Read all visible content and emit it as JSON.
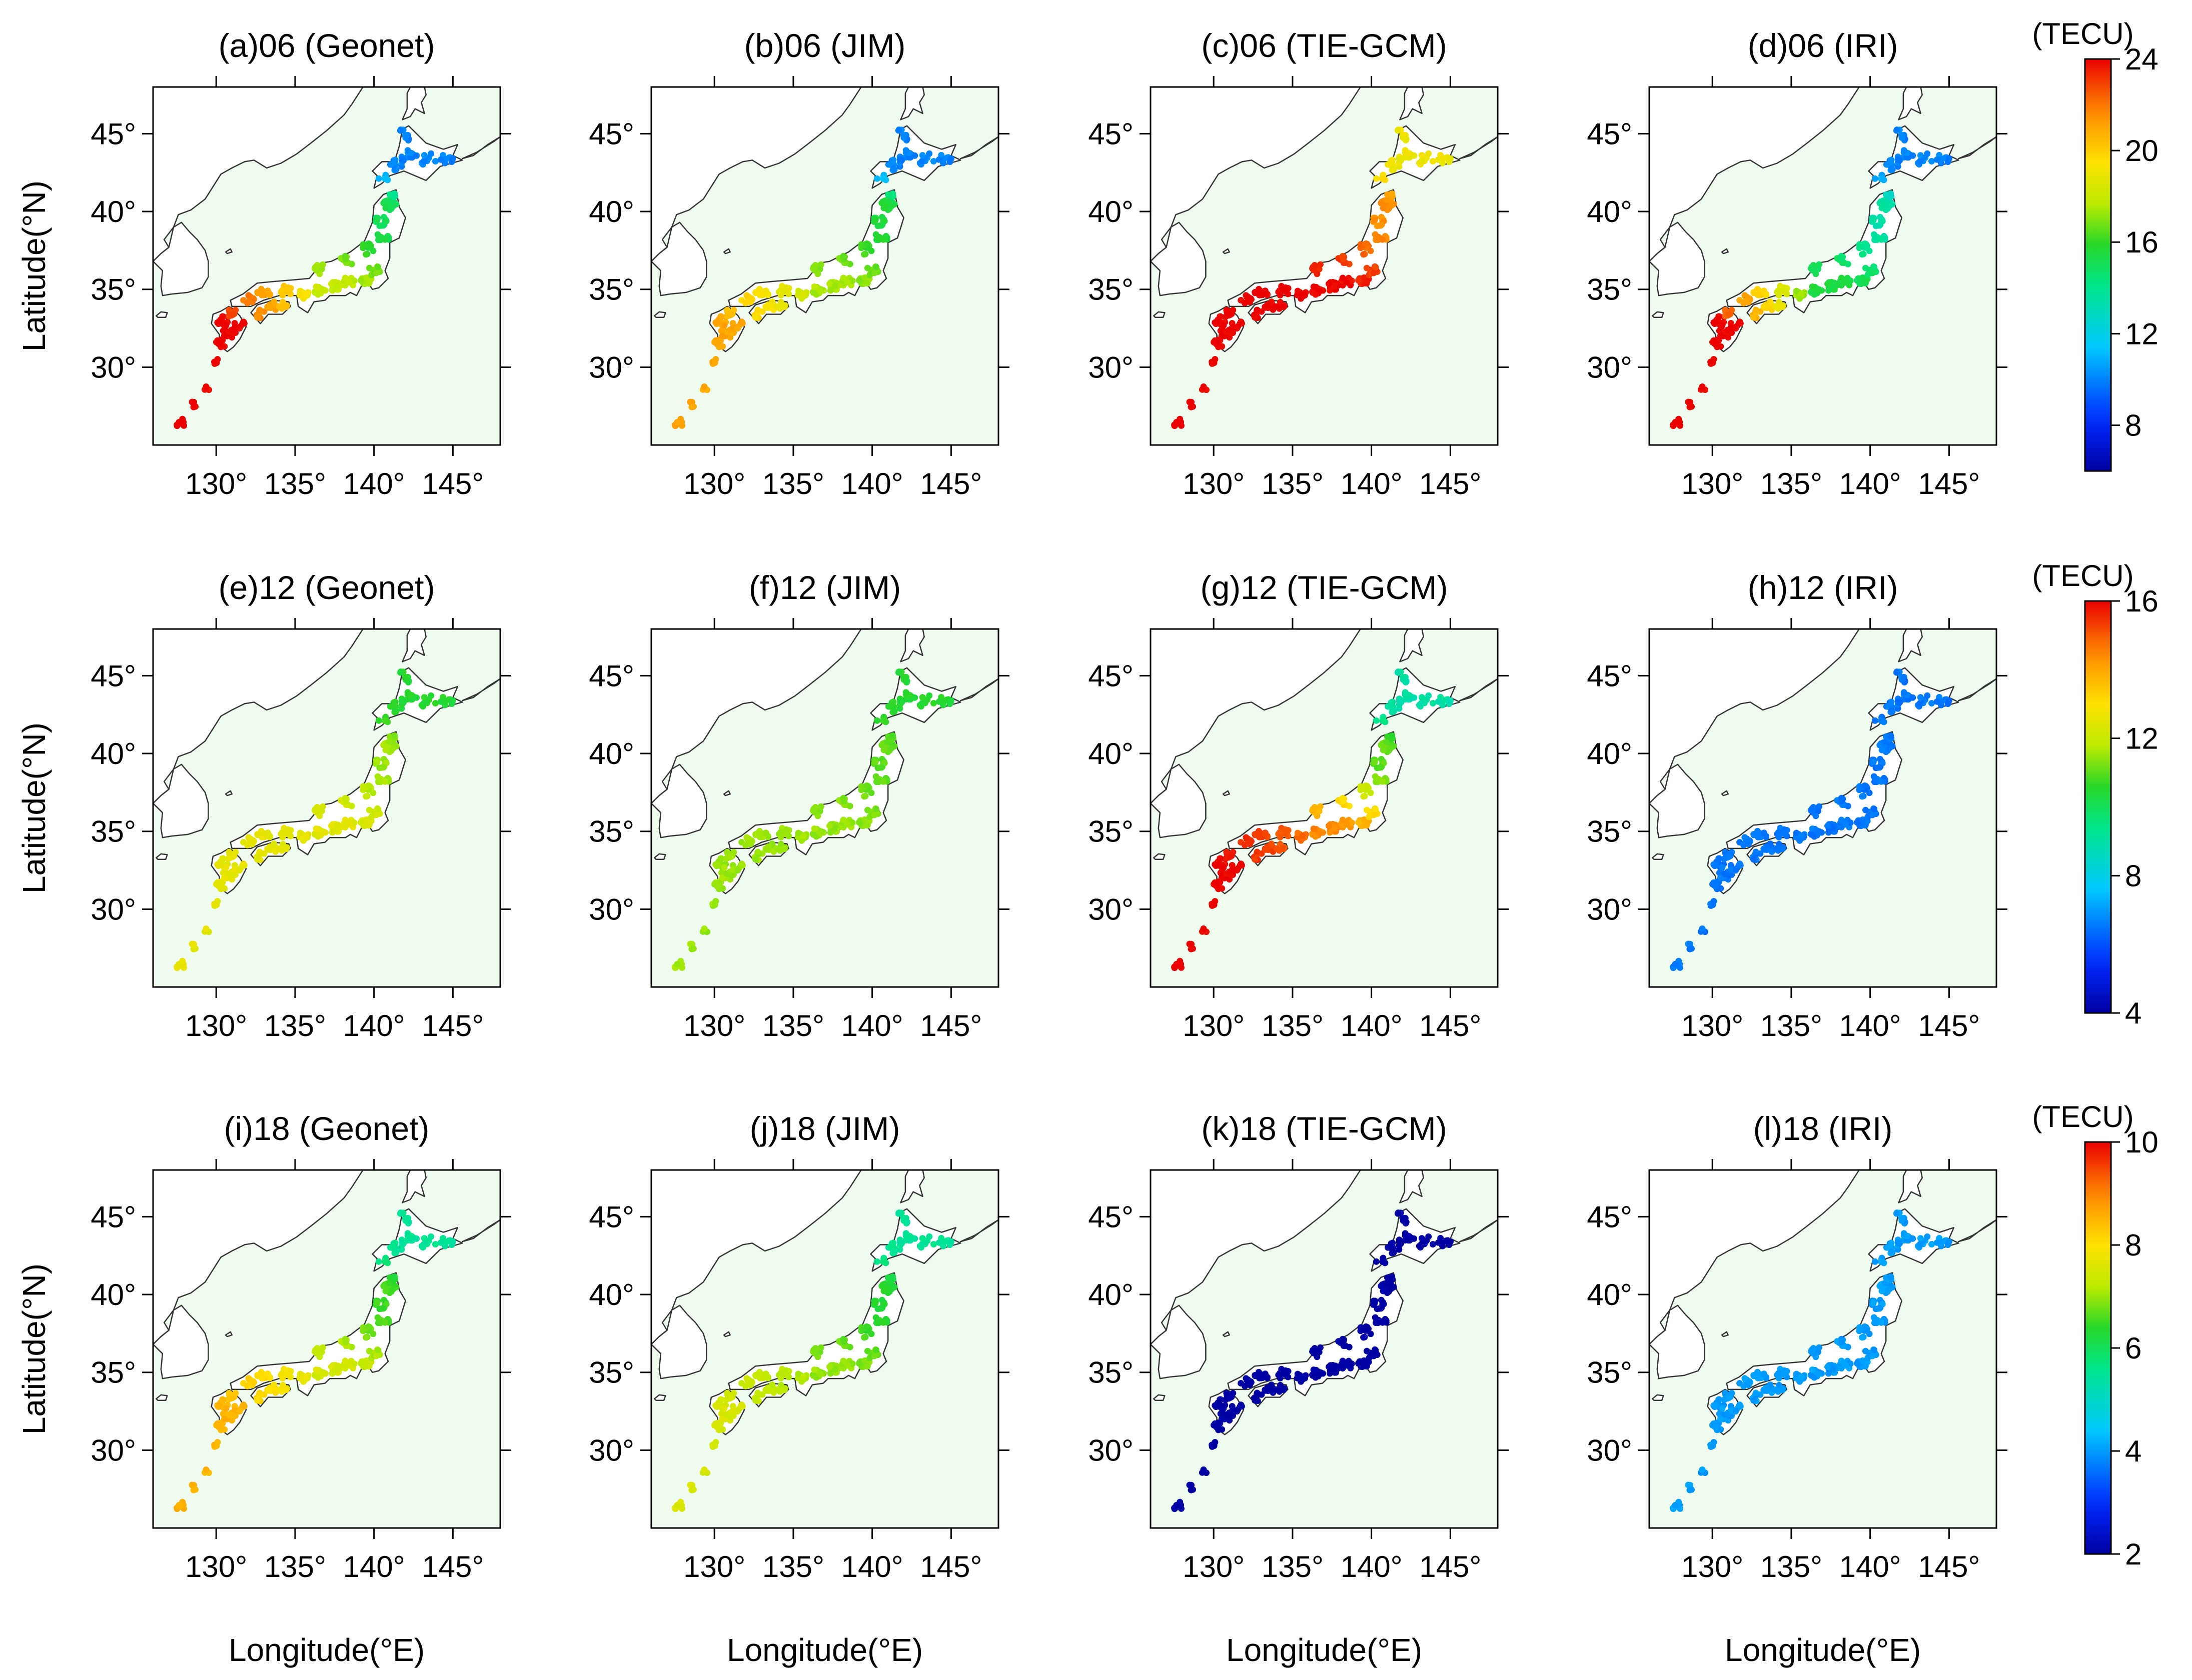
{
  "figure": {
    "y_axis_label": "Latitude(°N)",
    "x_axis_label": "Longitude(°E)",
    "lat_tick_labels": [
      "45°",
      "40°",
      "35°",
      "30°"
    ],
    "lon_tick_labels": [
      "130°",
      "135°",
      "140°",
      "145°"
    ],
    "lon_range": [
      126,
      148
    ],
    "lat_range": [
      25,
      48
    ],
    "land_color": "#ffffff",
    "ocean_color": "#effbef"
  },
  "rows": [
    {
      "hour": "06",
      "colorbar": {
        "unit": "(TECU)",
        "min": 6,
        "max": 24,
        "ticks": [
          "24",
          "20",
          "16",
          "12",
          "8"
        ],
        "tick_values": [
          24,
          20,
          16,
          12,
          8
        ]
      },
      "panels": [
        {
          "title": "(a)06 (Geonet)",
          "tec_south": 24,
          "tec_center": 18,
          "tec_north": 15,
          "tec_hokkaido": 10
        },
        {
          "title": "(b)06 (JIM)",
          "tec_south": 21,
          "tec_center": 17.5,
          "tec_north": 15.5,
          "tec_hokkaido": 10
        },
        {
          "title": "(c)06 (TIE-GCM)",
          "tec_south": 24,
          "tec_center": 24,
          "tec_north": 21.5,
          "tec_hokkaido": 19
        },
        {
          "title": "(d)06 (IRI)",
          "tec_south": 24,
          "tec_center": 15.5,
          "tec_north": 13.5,
          "tec_hokkaido": 10
        }
      ]
    },
    {
      "hour": "12",
      "colorbar": {
        "unit": "(TECU)",
        "min": 4,
        "max": 16,
        "ticks": [
          "16",
          "12",
          "8",
          "4"
        ],
        "tick_values": [
          16,
          12,
          8,
          4
        ]
      },
      "panels": [
        {
          "title": "(e)12 (Geonet)",
          "tec_south": 12.5,
          "tec_center": 12.5,
          "tec_north": 11.5,
          "tec_hokkaido": 10.5
        },
        {
          "title": "(f)12 (JIM)",
          "tec_south": 11.5,
          "tec_center": 11.5,
          "tec_north": 11,
          "tec_hokkaido": 10.5
        },
        {
          "title": "(g)12 (TIE-GCM)",
          "tec_south": 16,
          "tec_center": 14.5,
          "tec_north": 11,
          "tec_hokkaido": 9
        },
        {
          "title": "(h)12 (IRI)",
          "tec_south": 6.5,
          "tec_center": 6.5,
          "tec_north": 6.5,
          "tec_hokkaido": 6.5
        }
      ]
    },
    {
      "hour": "18",
      "colorbar": {
        "unit": "(TECU)",
        "min": 2,
        "max": 10,
        "ticks": [
          "10",
          "8",
          "6",
          "4",
          "2"
        ],
        "tick_values": [
          10,
          8,
          6,
          4,
          2
        ]
      },
      "panels": [
        {
          "title": "(i)18 (Geonet)",
          "tec_south": 8.5,
          "tec_center": 7.5,
          "tec_north": 6.5,
          "tec_hokkaido": 5.5
        },
        {
          "title": "(j)18 (JIM)",
          "tec_south": 7.5,
          "tec_center": 7,
          "tec_north": 6.3,
          "tec_hokkaido": 5.5
        },
        {
          "title": "(k)18 (TIE-GCM)",
          "tec_south": 2,
          "tec_center": 2,
          "tec_north": 2,
          "tec_hokkaido": 2
        },
        {
          "title": "(l)18 (IRI)",
          "tec_south": 4,
          "tec_center": 4,
          "tec_north": 4,
          "tec_hokkaido": 4
        }
      ]
    }
  ]
}
